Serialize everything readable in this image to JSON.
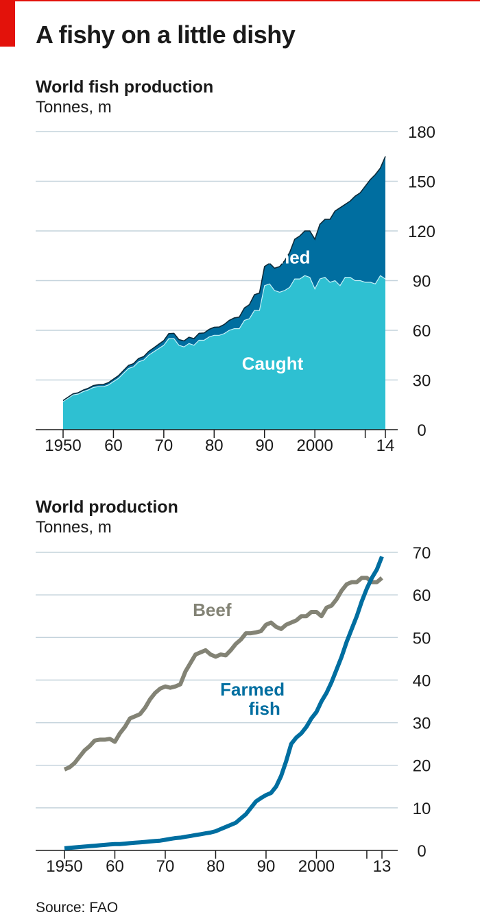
{
  "headline": "A fishy on a little dishy",
  "source": "Source: FAO",
  "chart_data": [
    {
      "type": "area",
      "stacked": true,
      "title": "World fish production",
      "subtitle": "Tonnes, m",
      "x_tick_values": [
        1950,
        1960,
        1970,
        1980,
        1990,
        2000,
        2014
      ],
      "x_tick_labels": [
        "1950",
        "60",
        "70",
        "80",
        "90",
        "2000",
        "14"
      ],
      "x_minor_ticks": [
        2010
      ],
      "xlim": [
        1950,
        2014
      ],
      "ylim": [
        0,
        180
      ],
      "y_ticks": [
        0,
        30,
        60,
        90,
        120,
        150,
        180
      ],
      "y_tick_labels": [
        "0",
        "30",
        "60",
        "90",
        "120",
        "150",
        "180"
      ],
      "y_axis_side": "right",
      "grid": true,
      "x": [
        1950,
        1951,
        1952,
        1953,
        1954,
        1955,
        1956,
        1957,
        1958,
        1959,
        1960,
        1961,
        1962,
        1963,
        1964,
        1965,
        1966,
        1967,
        1968,
        1969,
        1970,
        1971,
        1972,
        1973,
        1974,
        1975,
        1976,
        1977,
        1978,
        1979,
        1980,
        1981,
        1982,
        1983,
        1984,
        1985,
        1986,
        1987,
        1988,
        1989,
        1990,
        1991,
        1992,
        1993,
        1994,
        1995,
        1996,
        1997,
        1998,
        1999,
        2000,
        2001,
        2002,
        2003,
        2004,
        2005,
        2006,
        2007,
        2008,
        2009,
        2010,
        2011,
        2012,
        2013,
        2014
      ],
      "series": [
        {
          "name": "Caught",
          "color": "#2ec0d2",
          "values": [
            17,
            19,
            21,
            21.5,
            23,
            24,
            25.5,
            26,
            26,
            27,
            29,
            31,
            34,
            37,
            38,
            41,
            42,
            45,
            47,
            49,
            51,
            55,
            55,
            51,
            50,
            52,
            51,
            54,
            54,
            56,
            57,
            57,
            58,
            60,
            61,
            61,
            66,
            67,
            72,
            72,
            87,
            88,
            84,
            83,
            84,
            86,
            91,
            91,
            93,
            92,
            85,
            91,
            92,
            89,
            90,
            87,
            92,
            92,
            90,
            90,
            89,
            89,
            88,
            93,
            91
          ]
        },
        {
          "name": "Farmed",
          "color": "#006ea0",
          "values": [
            0.6,
            0.6,
            0.7,
            0.8,
            0.9,
            1.0,
            1.1,
            1.2,
            1.3,
            1.4,
            1.5,
            1.6,
            1.7,
            1.8,
            1.9,
            2.0,
            2.1,
            2.2,
            2.4,
            2.6,
            2.8,
            3.0,
            3.2,
            3.4,
            3.6,
            3.8,
            4.0,
            4.2,
            4.4,
            4.6,
            4.8,
            5.0,
            5.5,
            6.0,
            6.5,
            7.0,
            7.5,
            8.5,
            9.5,
            10.5,
            11.5,
            12.5,
            13.5,
            15.5,
            18,
            21,
            24,
            26,
            27,
            28,
            30,
            33,
            35,
            38,
            42,
            47,
            44,
            46,
            51,
            53,
            58,
            62,
            66,
            65,
            74
          ]
        }
      ],
      "annotations": [
        {
          "text": "Farmed",
          "x": 1992.7,
          "y": 104,
          "color": "#ffffff"
        },
        {
          "text": "Caught",
          "x": 1991.6,
          "y": 40,
          "color": "#ffffff"
        }
      ]
    },
    {
      "type": "line",
      "title": "World production",
      "subtitle": "Tonnes, m",
      "x_tick_values": [
        1950,
        1960,
        1970,
        1980,
        1990,
        2000,
        2013
      ],
      "x_tick_labels": [
        "1950",
        "60",
        "70",
        "80",
        "90",
        "2000",
        "13"
      ],
      "x_minor_ticks": [
        2010
      ],
      "xlim": [
        1950,
        2013
      ],
      "ylim": [
        0,
        70
      ],
      "y_ticks": [
        0,
        10,
        20,
        30,
        40,
        50,
        60,
        70
      ],
      "y_tick_labels": [
        "0",
        "10",
        "20",
        "30",
        "40",
        "50",
        "60",
        "70"
      ],
      "y_axis_side": "right",
      "grid": true,
      "x": [
        1950,
        1951,
        1952,
        1953,
        1954,
        1955,
        1956,
        1957,
        1958,
        1959,
        1960,
        1961,
        1962,
        1963,
        1964,
        1965,
        1966,
        1967,
        1968,
        1969,
        1970,
        1971,
        1972,
        1973,
        1974,
        1975,
        1976,
        1977,
        1978,
        1979,
        1980,
        1981,
        1982,
        1983,
        1984,
        1985,
        1986,
        1987,
        1988,
        1989,
        1990,
        1991,
        1992,
        1993,
        1994,
        1995,
        1996,
        1997,
        1998,
        1999,
        2000,
        2001,
        2002,
        2003,
        2004,
        2005,
        2006,
        2007,
        2008,
        2009,
        2010,
        2011,
        2012,
        2013
      ],
      "series": [
        {
          "name": "Beef",
          "color": "#838375",
          "values": [
            19,
            19.5,
            20.5,
            22,
            23.5,
            24.5,
            25.8,
            26,
            26,
            26.2,
            25.5,
            27.5,
            29,
            31,
            31.5,
            32,
            33.5,
            35.5,
            37,
            38,
            38.5,
            38.2,
            38.5,
            39,
            42,
            44,
            46,
            46.5,
            47,
            46,
            45.5,
            46,
            45.8,
            47,
            48.5,
            49.5,
            51,
            51,
            51.2,
            51.5,
            53,
            53.5,
            52.5,
            52,
            53,
            53.5,
            54,
            55,
            55,
            56,
            56,
            55,
            57,
            57.5,
            59,
            61,
            62.5,
            63,
            63,
            64,
            64,
            63,
            63,
            64
          ]
        },
        {
          "name": "Farmed fish",
          "color": "#006ea0",
          "values": [
            0.5,
            0.6,
            0.7,
            0.8,
            0.9,
            1.0,
            1.1,
            1.2,
            1.3,
            1.4,
            1.5,
            1.5,
            1.6,
            1.7,
            1.8,
            1.9,
            2.0,
            2.1,
            2.2,
            2.3,
            2.5,
            2.7,
            2.9,
            3.0,
            3.2,
            3.4,
            3.6,
            3.8,
            4.0,
            4.2,
            4.5,
            5.0,
            5.5,
            6.0,
            6.5,
            7.5,
            8.5,
            10.0,
            11.5,
            12.3,
            13.0,
            13.5,
            15.0,
            17.5,
            21.0,
            25.0,
            26.5,
            27.5,
            29.0,
            31.0,
            32.5,
            35.0,
            37.0,
            39.5,
            42.5,
            45.5,
            49.0,
            52.0,
            55.0,
            58.5,
            61.5,
            64.0,
            66.0,
            69.0
          ]
        }
      ],
      "annotations": [
        {
          "text": "Beef",
          "x": 1979.3,
          "y": 56.5,
          "color": "#838375"
        },
        {
          "text": "Farmed",
          "x": 1987.3,
          "y": 37.8,
          "color": "#006ea0"
        },
        {
          "text": "fish",
          "x": 1989.7,
          "y": 33.3,
          "color": "#006ea0"
        }
      ]
    }
  ]
}
